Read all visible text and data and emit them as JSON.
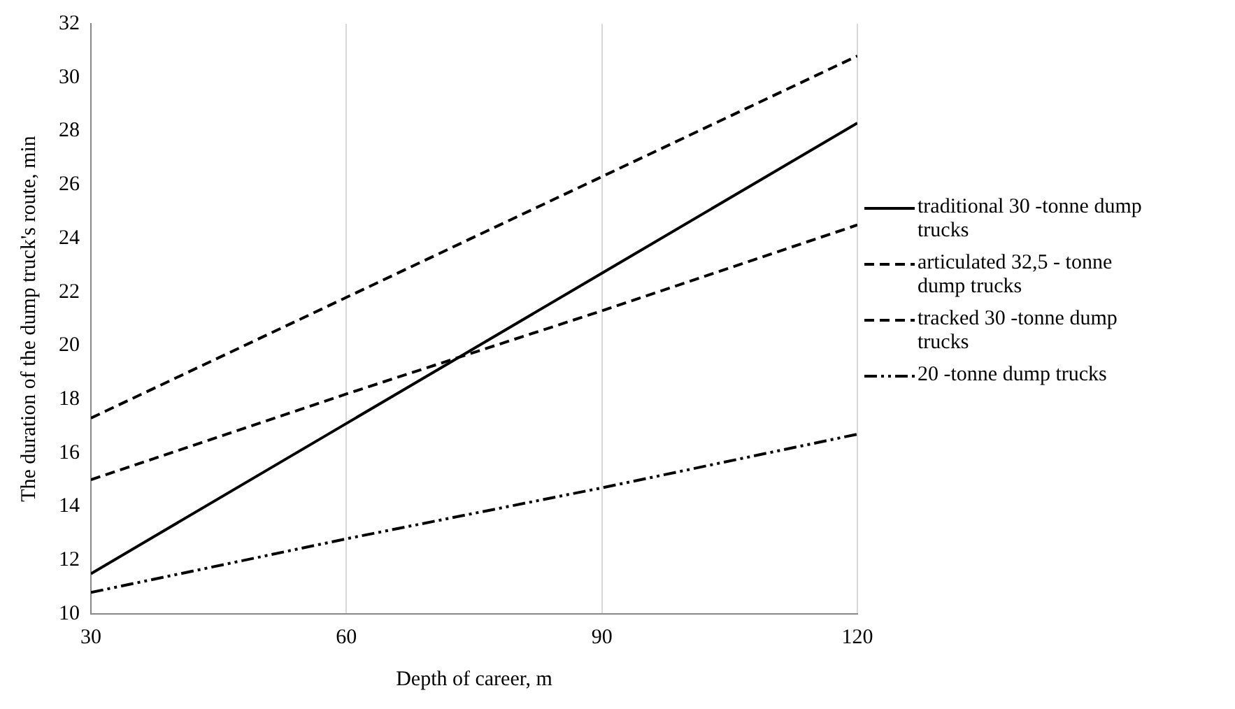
{
  "chart_data": {
    "type": "line",
    "xlabel": "Depth of career, m",
    "ylabel": "The duration of the dump truck's route, min",
    "x": [
      30,
      60,
      90,
      120
    ],
    "xlim": [
      30,
      120
    ],
    "xticks": [
      30,
      60,
      90,
      120
    ],
    "ylim": [
      10,
      32
    ],
    "yticks": [
      10,
      12,
      14,
      16,
      18,
      20,
      22,
      24,
      26,
      28,
      30,
      32
    ],
    "grid": "x",
    "legend": "right",
    "marker": "none",
    "series": [
      {
        "name": "traditional 30 -tonne dump trucks",
        "color": "#000000",
        "line_style": "solid",
        "values": [
          11.5,
          17.1,
          22.7,
          28.3
        ]
      },
      {
        "name": "articulated 32,5 - tonne dump trucks",
        "color": "#000000",
        "line_style": "dashed",
        "values": [
          17.3,
          21.8,
          26.3,
          30.8
        ]
      },
      {
        "name": "tracked 30 -tonne dump trucks",
        "color": "#000000",
        "line_style": "dashed",
        "values": [
          15.0,
          18.2,
          21.3,
          24.5
        ]
      },
      {
        "name": "20 -tonne dump trucks",
        "color": "#000000",
        "line_style": "dotted",
        "values": [
          10.8,
          12.8,
          14.7,
          16.7
        ]
      }
    ]
  }
}
